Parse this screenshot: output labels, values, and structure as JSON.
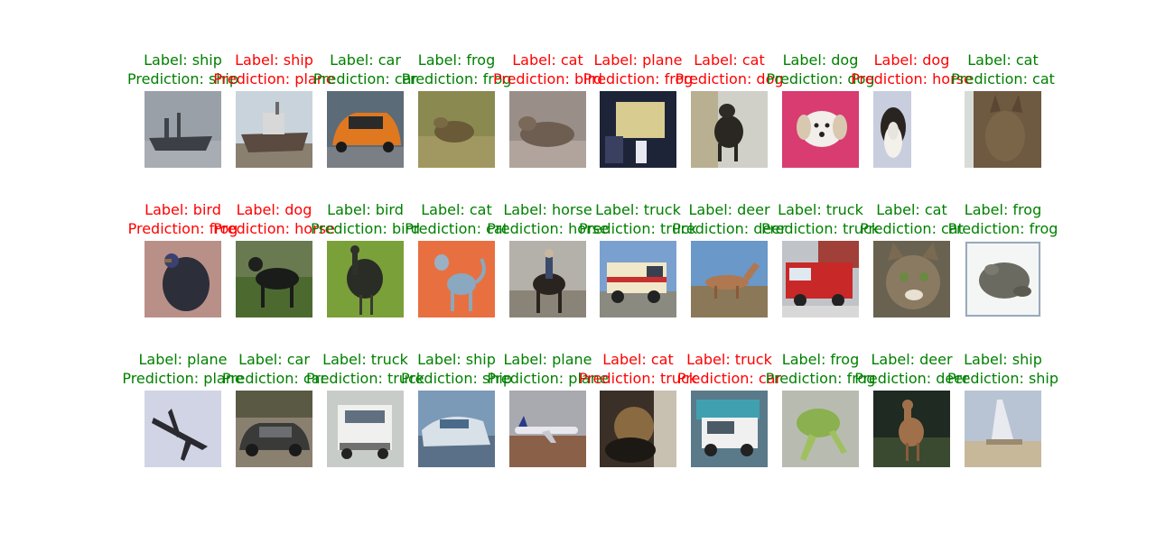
{
  "colors": {
    "correct": "#008000",
    "incorrect": "#ff0000"
  },
  "rows": [
    [
      {
        "label": "Label: ship",
        "prediction": "Prediction: ship",
        "correct": true,
        "scene": "ship-gray"
      },
      {
        "label": "Label: ship",
        "prediction": "Prediction: plane",
        "correct": false,
        "scene": "ship-beached"
      },
      {
        "label": "Label: car",
        "prediction": "Prediction: car",
        "correct": true,
        "scene": "car-orange"
      },
      {
        "label": "Label: frog",
        "prediction": "Prediction: frog",
        "correct": true,
        "scene": "frog-grass"
      },
      {
        "label": "Label: cat",
        "prediction": "Prediction: bird",
        "correct": false,
        "scene": "cat-lying"
      },
      {
        "label": "Label: plane",
        "prediction": "Prediction: frog",
        "correct": false,
        "scene": "plane-room"
      },
      {
        "label": "Label: cat",
        "prediction": "Prediction: dog",
        "correct": false,
        "scene": "cat-black"
      },
      {
        "label": "Label: dog",
        "prediction": "Prediction: dog",
        "correct": true,
        "scene": "dog-white-pink"
      },
      {
        "label": "Label: dog",
        "prediction": "Prediction: horse",
        "correct": false,
        "scene": "dog-beagle"
      },
      {
        "label": "Label: cat",
        "prediction": "Prediction: cat",
        "correct": true,
        "scene": "cat-window"
      }
    ],
    [
      {
        "label": "Label: bird",
        "prediction": "Prediction: frog",
        "correct": false,
        "scene": "bird-dark"
      },
      {
        "label": "Label: dog",
        "prediction": "Prediction: horse",
        "correct": false,
        "scene": "dog-black"
      },
      {
        "label": "Label: bird",
        "prediction": "Prediction: bird",
        "correct": true,
        "scene": "bird-emu"
      },
      {
        "label": "Label: cat",
        "prediction": "Prediction: cat",
        "correct": true,
        "scene": "cat-orange-bg"
      },
      {
        "label": "Label: horse",
        "prediction": "Prediction: horse",
        "correct": true,
        "scene": "horse-rider"
      },
      {
        "label": "Label: truck",
        "prediction": "Prediction: truck",
        "correct": true,
        "scene": "truck-fire"
      },
      {
        "label": "Label: deer",
        "prediction": "Prediction: deer",
        "correct": true,
        "scene": "deer-sky"
      },
      {
        "label": "Label: truck",
        "prediction": "Prediction: truck",
        "correct": true,
        "scene": "truck-red"
      },
      {
        "label": "Label: cat",
        "prediction": "Prediction: cat",
        "correct": true,
        "scene": "cat-tabby"
      },
      {
        "label": "Label: frog",
        "prediction": "Prediction: frog",
        "correct": true,
        "scene": "frog-white"
      }
    ],
    [
      {
        "label": "Label: plane",
        "prediction": "Prediction: plane",
        "correct": true,
        "scene": "plane-sketch"
      },
      {
        "label": "Label: car",
        "prediction": "Prediction: car",
        "correct": true,
        "scene": "car-dark"
      },
      {
        "label": "Label: truck",
        "prediction": "Prediction: truck",
        "correct": true,
        "scene": "truck-white"
      },
      {
        "label": "Label: ship",
        "prediction": "Prediction: ship",
        "correct": true,
        "scene": "ship-dock"
      },
      {
        "label": "Label: plane",
        "prediction": "Prediction: plane",
        "correct": true,
        "scene": "plane-runway"
      },
      {
        "label": "Label: cat",
        "prediction": "Prediction: truck",
        "correct": false,
        "scene": "cat-chair"
      },
      {
        "label": "Label: truck",
        "prediction": "Prediction: car",
        "correct": false,
        "scene": "truck-teal"
      },
      {
        "label": "Label: frog",
        "prediction": "Prediction: frog",
        "correct": true,
        "scene": "frog-green"
      },
      {
        "label": "Label: deer",
        "prediction": "Prediction: deer",
        "correct": true,
        "scene": "deer-forest"
      },
      {
        "label": "Label: ship",
        "prediction": "Prediction: ship",
        "correct": true,
        "scene": "ship-sail"
      }
    ]
  ]
}
